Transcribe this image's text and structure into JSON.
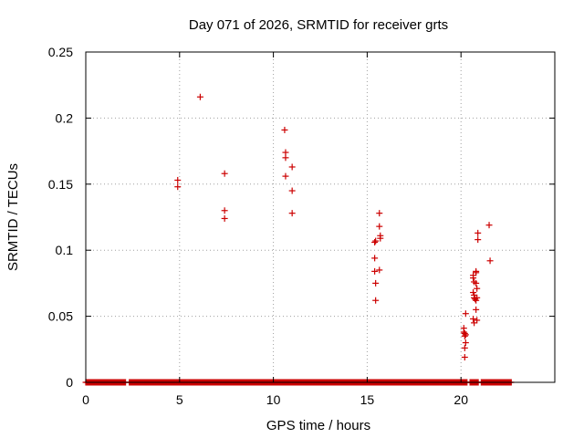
{
  "chart_data": {
    "type": "scatter",
    "title": "Day 071 of 2026, SRMTID for receiver grts",
    "xlabel": "GPS time / hours",
    "ylabel": "SRMTID / TECUs",
    "xlim": [
      0,
      25
    ],
    "ylim": [
      0,
      0.25
    ],
    "x_ticks": [
      0,
      5,
      10,
      15,
      20
    ],
    "x_tick_labels": [
      "0",
      "5",
      "10",
      "15",
      "20"
    ],
    "y_ticks": [
      0,
      0.05,
      0.1,
      0.15,
      0.2,
      0.25
    ],
    "y_tick_labels": [
      "0",
      "0.05",
      "0.1",
      "0.15",
      "0.2",
      "0.25"
    ],
    "grid": true,
    "marker": "+",
    "color": "#cc0000",
    "zero_band": {
      "x_start": 0.0,
      "x_end": 22.7,
      "step": 0.04,
      "gaps": [
        [
          2.15,
          2.3
        ],
        [
          20.35,
          20.45
        ],
        [
          20.95,
          21.05
        ]
      ]
    },
    "series": [
      {
        "name": "SRMTID",
        "points": [
          [
            4.9,
            0.153
          ],
          [
            4.9,
            0.148
          ],
          [
            6.1,
            0.216
          ],
          [
            7.4,
            0.158
          ],
          [
            7.4,
            0.13
          ],
          [
            7.4,
            0.124
          ],
          [
            10.6,
            0.191
          ],
          [
            10.65,
            0.174
          ],
          [
            10.65,
            0.17
          ],
          [
            10.65,
            0.156
          ],
          [
            11.0,
            0.163
          ],
          [
            11.0,
            0.145
          ],
          [
            11.0,
            0.128
          ],
          [
            15.4,
            0.106
          ],
          [
            15.45,
            0.107
          ],
          [
            15.4,
            0.094
          ],
          [
            15.4,
            0.084
          ],
          [
            15.45,
            0.075
          ],
          [
            15.45,
            0.062
          ],
          [
            15.65,
            0.128
          ],
          [
            15.65,
            0.118
          ],
          [
            15.7,
            0.111
          ],
          [
            15.7,
            0.109
          ],
          [
            15.65,
            0.085
          ],
          [
            20.15,
            0.041
          ],
          [
            20.15,
            0.038
          ],
          [
            20.2,
            0.037
          ],
          [
            20.25,
            0.036
          ],
          [
            20.2,
            0.035
          ],
          [
            20.25,
            0.03
          ],
          [
            20.2,
            0.026
          ],
          [
            20.2,
            0.019
          ],
          [
            20.25,
            0.052
          ],
          [
            20.65,
            0.081
          ],
          [
            20.65,
            0.079
          ],
          [
            20.7,
            0.076
          ],
          [
            20.65,
            0.068
          ],
          [
            20.7,
            0.066
          ],
          [
            20.7,
            0.064
          ],
          [
            20.75,
            0.063
          ],
          [
            20.65,
            0.048
          ],
          [
            20.7,
            0.045
          ],
          [
            20.8,
            0.084
          ],
          [
            20.8,
            0.083
          ],
          [
            20.8,
            0.075
          ],
          [
            20.85,
            0.071
          ],
          [
            20.85,
            0.064
          ],
          [
            20.8,
            0.062
          ],
          [
            20.8,
            0.055
          ],
          [
            20.85,
            0.047
          ],
          [
            20.9,
            0.113
          ],
          [
            20.9,
            0.108
          ],
          [
            21.5,
            0.119
          ],
          [
            21.55,
            0.092
          ]
        ]
      }
    ]
  }
}
